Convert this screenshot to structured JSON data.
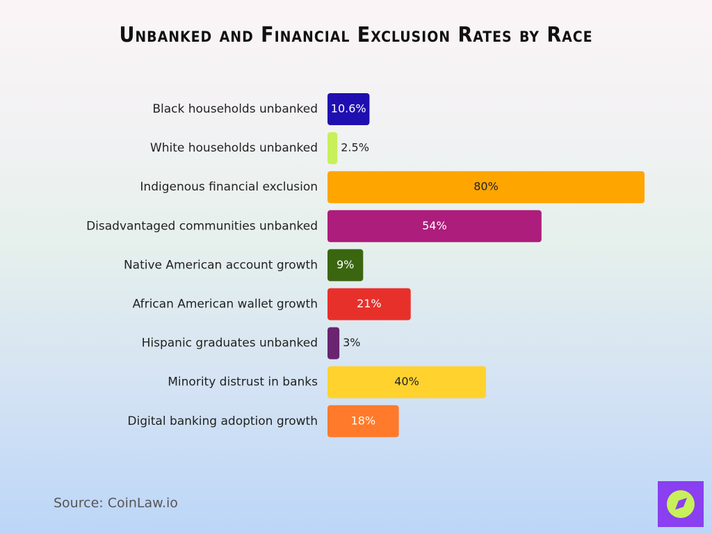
{
  "chart_data": {
    "type": "bar",
    "orientation": "horizontal",
    "title": "Unbanked and Financial Exclusion Rates by Race",
    "categories": [
      "Black households unbanked",
      "White households unbanked",
      "Indigenous financial exclusion",
      "Disadvantaged communities unbanked",
      "Native American account growth",
      "African American wallet growth",
      "Hispanic graduates unbanked",
      "Minority distrust in banks",
      "Digital banking adoption growth"
    ],
    "values": [
      10.6,
      2.5,
      80,
      54,
      9,
      21,
      3,
      40,
      18
    ],
    "value_labels": [
      "10.6%",
      "2.5%",
      "80%",
      "54%",
      "9%",
      "21%",
      "3%",
      "40%",
      "18%"
    ],
    "colors": [
      "#1f0fb0",
      "#c8f05a",
      "#ffa500",
      "#ad1d7b",
      "#3b6610",
      "#e8302b",
      "#6a2470",
      "#ffd22e",
      "#ff7a2a"
    ],
    "source": "Source: CoinLaw.io"
  }
}
